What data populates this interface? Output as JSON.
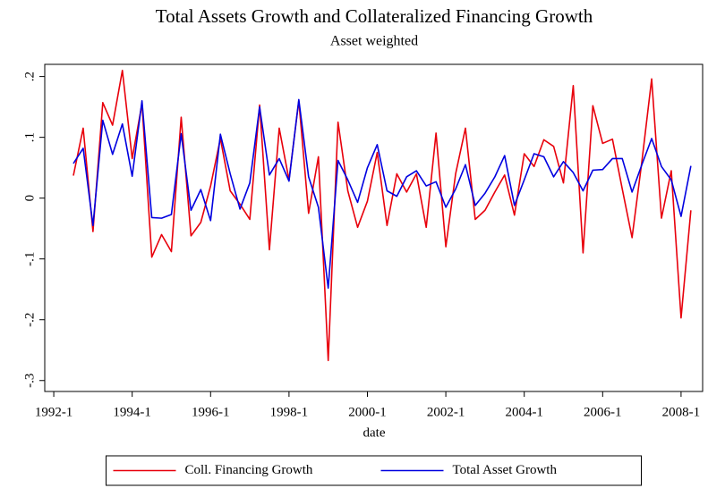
{
  "chart_data": {
    "type": "line",
    "title": "Total Assets Growth and Collateralized Financing Growth",
    "subtitle": "Asset weighted",
    "x_label": "date",
    "x": [
      1992.5,
      1992.75,
      1993,
      1993.25,
      1993.5,
      1993.75,
      1994,
      1994.25,
      1994.5,
      1994.75,
      1995,
      1995.25,
      1995.5,
      1995.75,
      1996,
      1996.25,
      1996.5,
      1996.75,
      1997,
      1997.25,
      1997.5,
      1997.75,
      1998,
      1998.25,
      1998.5,
      1998.75,
      1999,
      1999.25,
      1999.5,
      1999.75,
      2000,
      2000.25,
      2000.5,
      2000.75,
      2001,
      2001.25,
      2001.5,
      2001.75,
      2002,
      2002.25,
      2002.5,
      2002.75,
      2003,
      2003.25,
      2003.5,
      2003.75,
      2004,
      2004.25,
      2004.5,
      2004.75,
      2005,
      2005.25,
      2005.5,
      2005.75,
      2006,
      2006.25,
      2006.5,
      2006.75,
      2007,
      2007.25,
      2007.5,
      2007.75,
      2008,
      2008.25
    ],
    "series": [
      {
        "name": "Coll. Financing Growth",
        "color": "#e8000b",
        "values": [
          0.037,
          0.115,
          -0.055,
          0.157,
          0.12,
          0.21,
          0.065,
          0.155,
          -0.097,
          -0.06,
          -0.088,
          0.133,
          -0.062,
          -0.04,
          0.02,
          0.098,
          0.012,
          -0.01,
          -0.035,
          0.153,
          -0.085,
          0.115,
          0.03,
          0.16,
          -0.025,
          0.068,
          -0.267,
          0.125,
          0.012,
          -0.048,
          -0.005,
          0.075,
          -0.045,
          0.04,
          0.01,
          0.04,
          -0.048,
          0.107,
          -0.08,
          0.04,
          0.115,
          -0.035,
          -0.02,
          0.01,
          0.038,
          -0.028,
          0.073,
          0.052,
          0.096,
          0.085,
          0.025,
          0.185,
          -0.09,
          0.152,
          0.09,
          0.097,
          0.015,
          -0.065,
          0.06,
          0.196,
          -0.033,
          0.045,
          -0.197,
          -0.02
        ]
      },
      {
        "name": "Total Asset Growth",
        "color": "#0000e0",
        "values": [
          0.057,
          0.082,
          -0.045,
          0.128,
          0.072,
          0.122,
          0.036,
          0.16,
          -0.032,
          -0.033,
          -0.027,
          0.106,
          -0.02,
          0.014,
          -0.037,
          0.105,
          0.04,
          -0.018,
          0.025,
          0.15,
          0.038,
          0.065,
          0.028,
          0.162,
          0.035,
          -0.015,
          -0.148,
          0.062,
          0.03,
          -0.007,
          0.05,
          0.088,
          0.012,
          0.003,
          0.035,
          0.045,
          0.02,
          0.027,
          -0.015,
          0.015,
          0.055,
          -0.012,
          0.008,
          0.035,
          0.07,
          -0.012,
          0.03,
          0.073,
          0.068,
          0.035,
          0.06,
          0.042,
          0.012,
          0.046,
          0.047,
          0.065,
          0.065,
          0.01,
          0.055,
          0.098,
          0.052,
          0.03,
          -0.03,
          0.053
        ]
      }
    ],
    "xlim": [
      1991.77,
      2008.55
    ],
    "xticks": [
      {
        "value": 1992,
        "label": "1992-1"
      },
      {
        "value": 1994,
        "label": "1994-1"
      },
      {
        "value": 1996,
        "label": "1996-1"
      },
      {
        "value": 1998,
        "label": "1998-1"
      },
      {
        "value": 2000,
        "label": "2000-1"
      },
      {
        "value": 2002,
        "label": "2002-1"
      },
      {
        "value": 2004,
        "label": "2004-1"
      },
      {
        "value": 2006,
        "label": "2006-1"
      },
      {
        "value": 2008,
        "label": "2008-1"
      }
    ],
    "ylim": [
      -0.318,
      0.22
    ],
    "yticks": [
      {
        "value": -0.3,
        "label": "-.3"
      },
      {
        "value": -0.2,
        "label": "-.2"
      },
      {
        "value": -0.1,
        "label": "-.1"
      },
      0,
      {
        "value": 0.1,
        "label": ".1"
      },
      {
        "value": 0.2,
        "label": ".2"
      }
    ],
    "grid": false,
    "legend": "bottom"
  }
}
